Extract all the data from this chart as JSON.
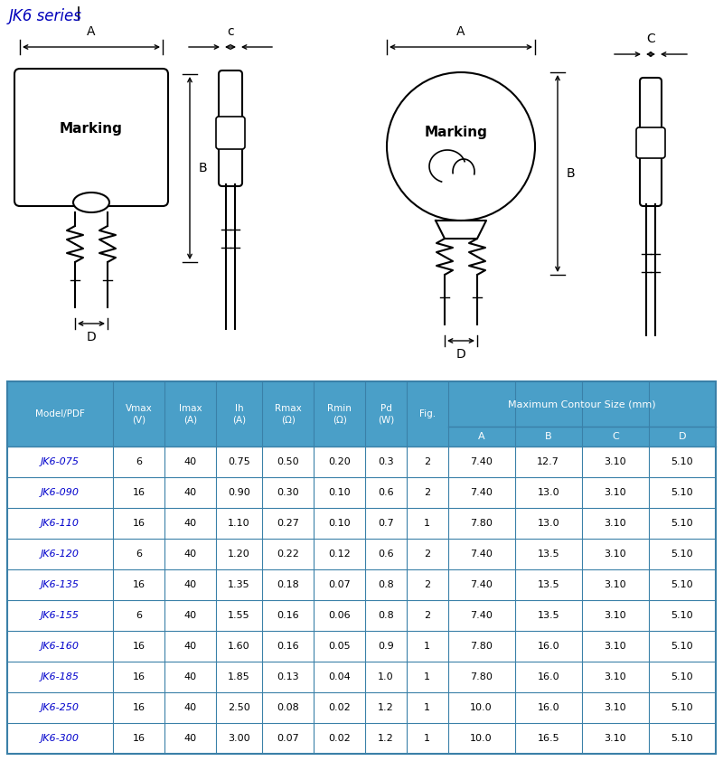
{
  "title": "JK6 series",
  "title_color": "#0000BB",
  "bg_color": "#FFFFFF",
  "table_header_bg": "#4A9FC8",
  "table_border_color": "#3A80A8",
  "table_model_color": "#0000CC",
  "table_text_color": "#000000",
  "rows": [
    [
      "JK6-075",
      "6",
      "40",
      "0.75",
      "0.50",
      "0.20",
      "0.3",
      "2",
      "7.40",
      "12.7",
      "3.10",
      "5.10"
    ],
    [
      "JK6-090",
      "16",
      "40",
      "0.90",
      "0.30",
      "0.10",
      "0.6",
      "2",
      "7.40",
      "13.0",
      "3.10",
      "5.10"
    ],
    [
      "JK6-110",
      "16",
      "40",
      "1.10",
      "0.27",
      "0.10",
      "0.7",
      "1",
      "7.80",
      "13.0",
      "3.10",
      "5.10"
    ],
    [
      "JK6-120",
      "6",
      "40",
      "1.20",
      "0.22",
      "0.12",
      "0.6",
      "2",
      "7.40",
      "13.5",
      "3.10",
      "5.10"
    ],
    [
      "JK6-135",
      "16",
      "40",
      "1.35",
      "0.18",
      "0.07",
      "0.8",
      "2",
      "7.40",
      "13.5",
      "3.10",
      "5.10"
    ],
    [
      "JK6-155",
      "6",
      "40",
      "1.55",
      "0.16",
      "0.06",
      "0.8",
      "2",
      "7.40",
      "13.5",
      "3.10",
      "5.10"
    ],
    [
      "JK6-160",
      "16",
      "40",
      "1.60",
      "0.16",
      "0.05",
      "0.9",
      "1",
      "7.80",
      "16.0",
      "3.10",
      "5.10"
    ],
    [
      "JK6-185",
      "16",
      "40",
      "1.85",
      "0.13",
      "0.04",
      "1.0",
      "1",
      "7.80",
      "16.0",
      "3.10",
      "5.10"
    ],
    [
      "JK6-250",
      "16",
      "40",
      "2.50",
      "0.08",
      "0.02",
      "1.2",
      "1",
      "10.0",
      "16.0",
      "3.10",
      "5.10"
    ],
    [
      "JK6-300",
      "16",
      "40",
      "3.00",
      "0.07",
      "0.02",
      "1.2",
      "1",
      "10.0",
      "16.5",
      "3.10",
      "5.10"
    ]
  ],
  "lc": "#000000",
  "tc": "#000000"
}
